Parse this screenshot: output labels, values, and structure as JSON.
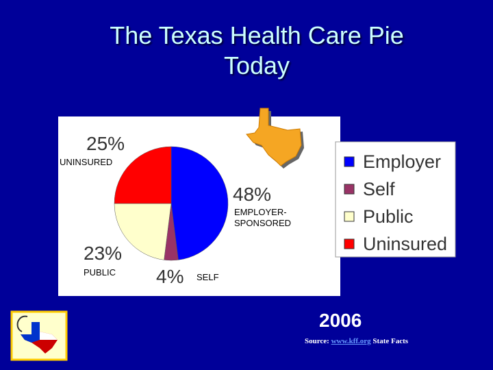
{
  "chart_data": {
    "type": "pie",
    "title": "The Texas Health Care Pie Today",
    "categories": [
      "Employer",
      "Self",
      "Public",
      "Uninsured"
    ],
    "values": [
      48,
      4,
      23,
      25
    ],
    "value_labels": [
      "48%",
      "4%",
      "23%",
      "25%"
    ],
    "annotations": [
      "EMPLOYER-SPONSORED",
      "SELF",
      "PUBLIC",
      "UNINSURED"
    ],
    "colors": [
      "#0000ff",
      "#993366",
      "#ffffcc",
      "#ff0000"
    ],
    "legend": "right"
  },
  "year": "2006",
  "source": {
    "prefix": "Source:",
    "link": "www.kff.org",
    "suffix": "State Facts"
  }
}
